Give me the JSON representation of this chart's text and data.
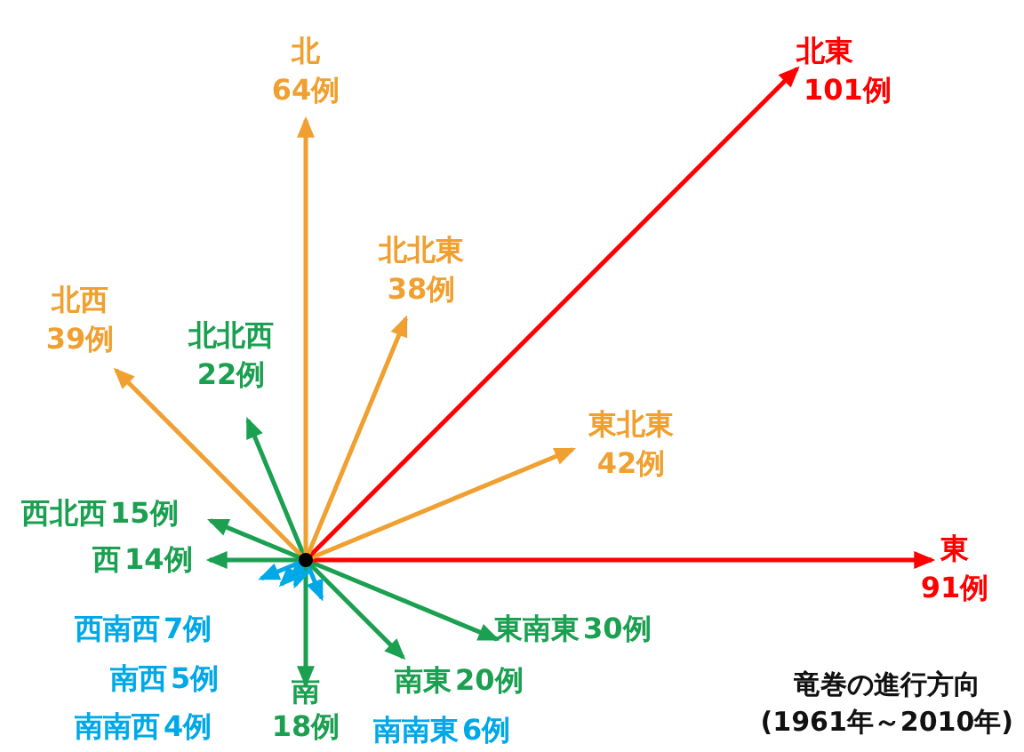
{
  "chart_data": {
    "type": "other",
    "title": "竜巻の進行方向",
    "subtitle": "(1961年～2010年)",
    "categories": [
      "北",
      "北北東",
      "北東",
      "東北東",
      "東",
      "東南東",
      "南東",
      "南南東",
      "南",
      "南南西",
      "南西",
      "西南西",
      "西",
      "西北西",
      "北西",
      "北北西"
    ],
    "values": [
      64,
      38,
      101,
      42,
      91,
      30,
      20,
      6,
      18,
      4,
      5,
      7,
      14,
      15,
      39,
      22
    ],
    "value_labels": [
      "64例",
      "38例",
      "101例",
      "42例",
      "91例",
      "30例",
      "20例",
      "6例",
      "18例",
      "4例",
      "5例",
      "7例",
      "14例",
      "15例",
      "39例",
      "22例"
    ],
    "colors": [
      "#f0a030",
      "#f0a030",
      "#ff0000",
      "#f0a030",
      "#ff0000",
      "#1aa050",
      "#1aa050",
      "#00a8e8",
      "#1aa050",
      "#00a8e8",
      "#00a8e8",
      "#00a8e8",
      "#1aa050",
      "#1aa050",
      "#f0a030",
      "#1aa050"
    ]
  }
}
